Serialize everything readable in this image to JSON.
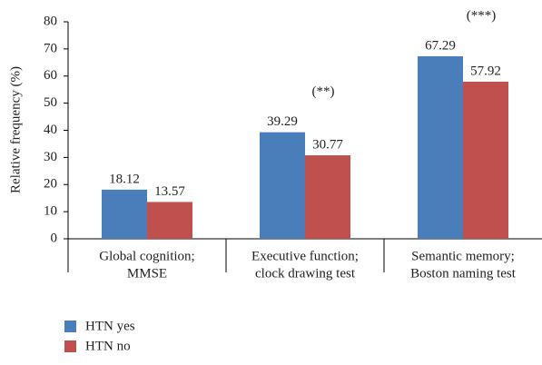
{
  "chart_data": {
    "type": "bar",
    "y_label": "Relative frequency (%)",
    "categories": [
      [
        "Global cognition;",
        "MMSE"
      ],
      [
        "Executive function;",
        "clock drawing test"
      ],
      [
        "Semantic memory;",
        "Boston naming test"
      ]
    ],
    "series": [
      {
        "name": "HTN yes",
        "color": "#4a7ebb",
        "values": [
          18.12,
          39.29,
          67.29
        ]
      },
      {
        "name": "HTN no",
        "color": "#c0504d",
        "values": [
          13.57,
          30.77,
          57.92
        ]
      }
    ],
    "annotations": [
      null,
      "(**)",
      "(***)"
    ],
    "ylim": [
      0,
      80
    ],
    "yticks": [
      0,
      10,
      20,
      30,
      40,
      50,
      60,
      70,
      80
    ],
    "legend": "bottom-left"
  }
}
